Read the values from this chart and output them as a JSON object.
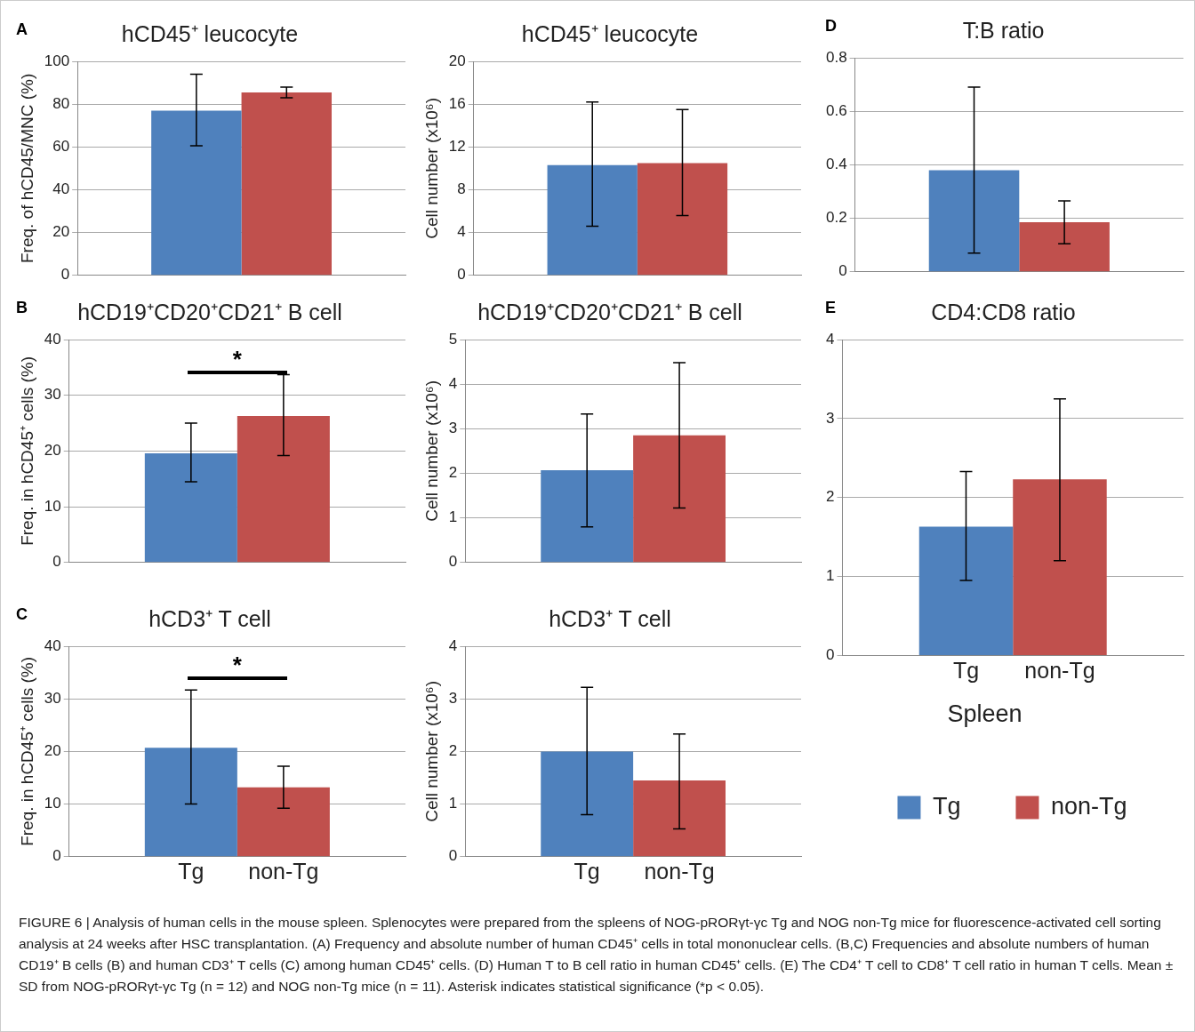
{
  "chart_data": [
    {
      "type": "bar",
      "title": "hCD45⁺ leucocyte",
      "ylabel": "Freq. of hCD45/MNC (%)",
      "categories": [
        null
      ],
      "series": [
        {
          "color": "#4f81bd",
          "values": [
            77
          ],
          "errors": [
            [
              60.5,
              94
            ]
          ]
        },
        {
          "color": "#c0504d",
          "values": [
            85.5
          ],
          "errors": [
            [
              83,
              88
            ]
          ]
        }
      ],
      "ylim": [
        0,
        100
      ],
      "yticks": [
        0,
        20,
        40,
        60,
        80,
        100
      ],
      "grid": "y",
      "annotations": [
        "A"
      ]
    },
    {
      "type": "bar",
      "title": "hCD45⁺ leucocyte",
      "ylabel": "Cell number (x10⁶)",
      "categories": [
        null
      ],
      "series": [
        {
          "color": "#4f81bd",
          "values": [
            10.3
          ],
          "errors": [
            [
              4.6,
              16.2
            ]
          ]
        },
        {
          "color": "#c0504d",
          "values": [
            10.5
          ],
          "errors": [
            [
              5.6,
              15.5
            ]
          ]
        }
      ],
      "ylim": [
        0,
        20
      ],
      "yticks": [
        0,
        4,
        8,
        12,
        16,
        20
      ],
      "grid": "y"
    },
    {
      "type": "bar",
      "title": "T:B ratio",
      "categories": [
        null
      ],
      "series": [
        {
          "color": "#4f81bd",
          "values": [
            0.38
          ],
          "errors": [
            [
              0.07,
              0.69
            ]
          ]
        },
        {
          "color": "#c0504d",
          "values": [
            0.185
          ],
          "errors": [
            [
              0.105,
              0.265
            ]
          ]
        }
      ],
      "ylim": [
        0,
        0.8
      ],
      "yticks": [
        0,
        0.2,
        0.4,
        0.6,
        0.8
      ],
      "grid": "y",
      "annotations": [
        "D"
      ]
    },
    {
      "type": "bar",
      "title": "hCD19⁺CD20⁺CD21⁺ B cell",
      "ylabel": "Freq. in hCD45⁺ cells (%)",
      "categories": [
        null
      ],
      "series": [
        {
          "color": "#4f81bd",
          "values": [
            19.6
          ],
          "errors": [
            [
              14.5,
              25
            ]
          ]
        },
        {
          "color": "#c0504d",
          "values": [
            26.3
          ],
          "errors": [
            [
              19.2,
              33.7
            ]
          ]
        }
      ],
      "ylim": [
        0,
        40
      ],
      "yticks": [
        0,
        10,
        20,
        30,
        40
      ],
      "grid": "y",
      "annotations": [
        "B",
        "*"
      ]
    },
    {
      "type": "bar",
      "title": "hCD19⁺CD20⁺CD21⁺ B cell",
      "ylabel": "Cell number (x10⁶)",
      "categories": [
        null
      ],
      "series": [
        {
          "color": "#4f81bd",
          "values": [
            2.07
          ],
          "errors": [
            [
              0.8,
              3.33
            ]
          ]
        },
        {
          "color": "#c0504d",
          "values": [
            2.85
          ],
          "errors": [
            [
              1.22,
              4.48
            ]
          ]
        }
      ],
      "ylim": [
        0,
        5
      ],
      "yticks": [
        0,
        1,
        2,
        3,
        4,
        5
      ],
      "grid": "y"
    },
    {
      "type": "bar",
      "title": "CD4:CD8 ratio",
      "categories": [
        null
      ],
      "series": [
        {
          "name": "Tg",
          "color": "#4f81bd",
          "values": [
            1.63
          ],
          "errors": [
            [
              0.95,
              2.33
            ]
          ]
        },
        {
          "name": "non-Tg",
          "color": "#c0504d",
          "values": [
            2.23
          ],
          "errors": [
            [
              1.2,
              3.25
            ]
          ]
        }
      ],
      "ylim": [
        0,
        4
      ],
      "yticks": [
        0,
        1,
        2,
        3,
        4
      ],
      "grid": "y",
      "legend": "bottom",
      "legend_title": "Spleen",
      "annotations": [
        "E"
      ]
    },
    {
      "type": "bar",
      "title": "hCD3⁺ T cell",
      "ylabel": "Freq. in hCD45⁺ cells (%)",
      "categories": [
        null
      ],
      "series": [
        {
          "name": "Tg",
          "color": "#4f81bd",
          "values": [
            20.7
          ],
          "errors": [
            [
              10,
              31.7
            ]
          ]
        },
        {
          "name": "non-Tg",
          "color": "#c0504d",
          "values": [
            13.2
          ],
          "errors": [
            [
              9.2,
              17.2
            ]
          ]
        }
      ],
      "ylim": [
        0,
        40
      ],
      "yticks": [
        0,
        10,
        20,
        30,
        40
      ],
      "grid": "y",
      "annotations": [
        "C",
        "*"
      ]
    },
    {
      "type": "bar",
      "title": "hCD3⁺ T cell",
      "ylabel": "Cell number (x10⁶)",
      "categories": [
        null
      ],
      "series": [
        {
          "name": "Tg",
          "color": "#4f81bd",
          "values": [
            2.0
          ],
          "errors": [
            [
              0.8,
              3.22
            ]
          ]
        },
        {
          "name": "non-Tg",
          "color": "#c0504d",
          "values": [
            1.45
          ],
          "errors": [
            [
              0.53,
              2.33
            ]
          ]
        }
      ],
      "ylim": [
        0,
        4
      ],
      "yticks": [
        0,
        1,
        2,
        3,
        4
      ],
      "grid": "y"
    },
    {
      "type": "other",
      "annotations": [
        "FIGURE 6 | Analysis of human cells in the mouse spleen. Splenocytes were prepared from the spleens of NOG-pRORγt-γc Tg and NOG non-Tg mice for fluorescence-activated cell sorting analysis at 24 weeks after HSC transplantation. (A) Frequency and absolute number of human CD45⁺ cells in total mononuclear cells. (B,C) Frequencies and absolute numbers of human CD19⁺ B cells (B) and human CD3⁺ T cells (C) among human CD45⁺ cells. (D) Human T to B cell ratio in human CD45⁺ cells. (E) The CD4⁺ T cell to CD8⁺ T cell ratio in human T cells. Mean ± SD from NOG-pRORγt-γc Tg (n = 12) and NOG non-Tg mice (n = 11). Asterisk indicates statistical significance (*p < 0.05)."
      ]
    }
  ]
}
